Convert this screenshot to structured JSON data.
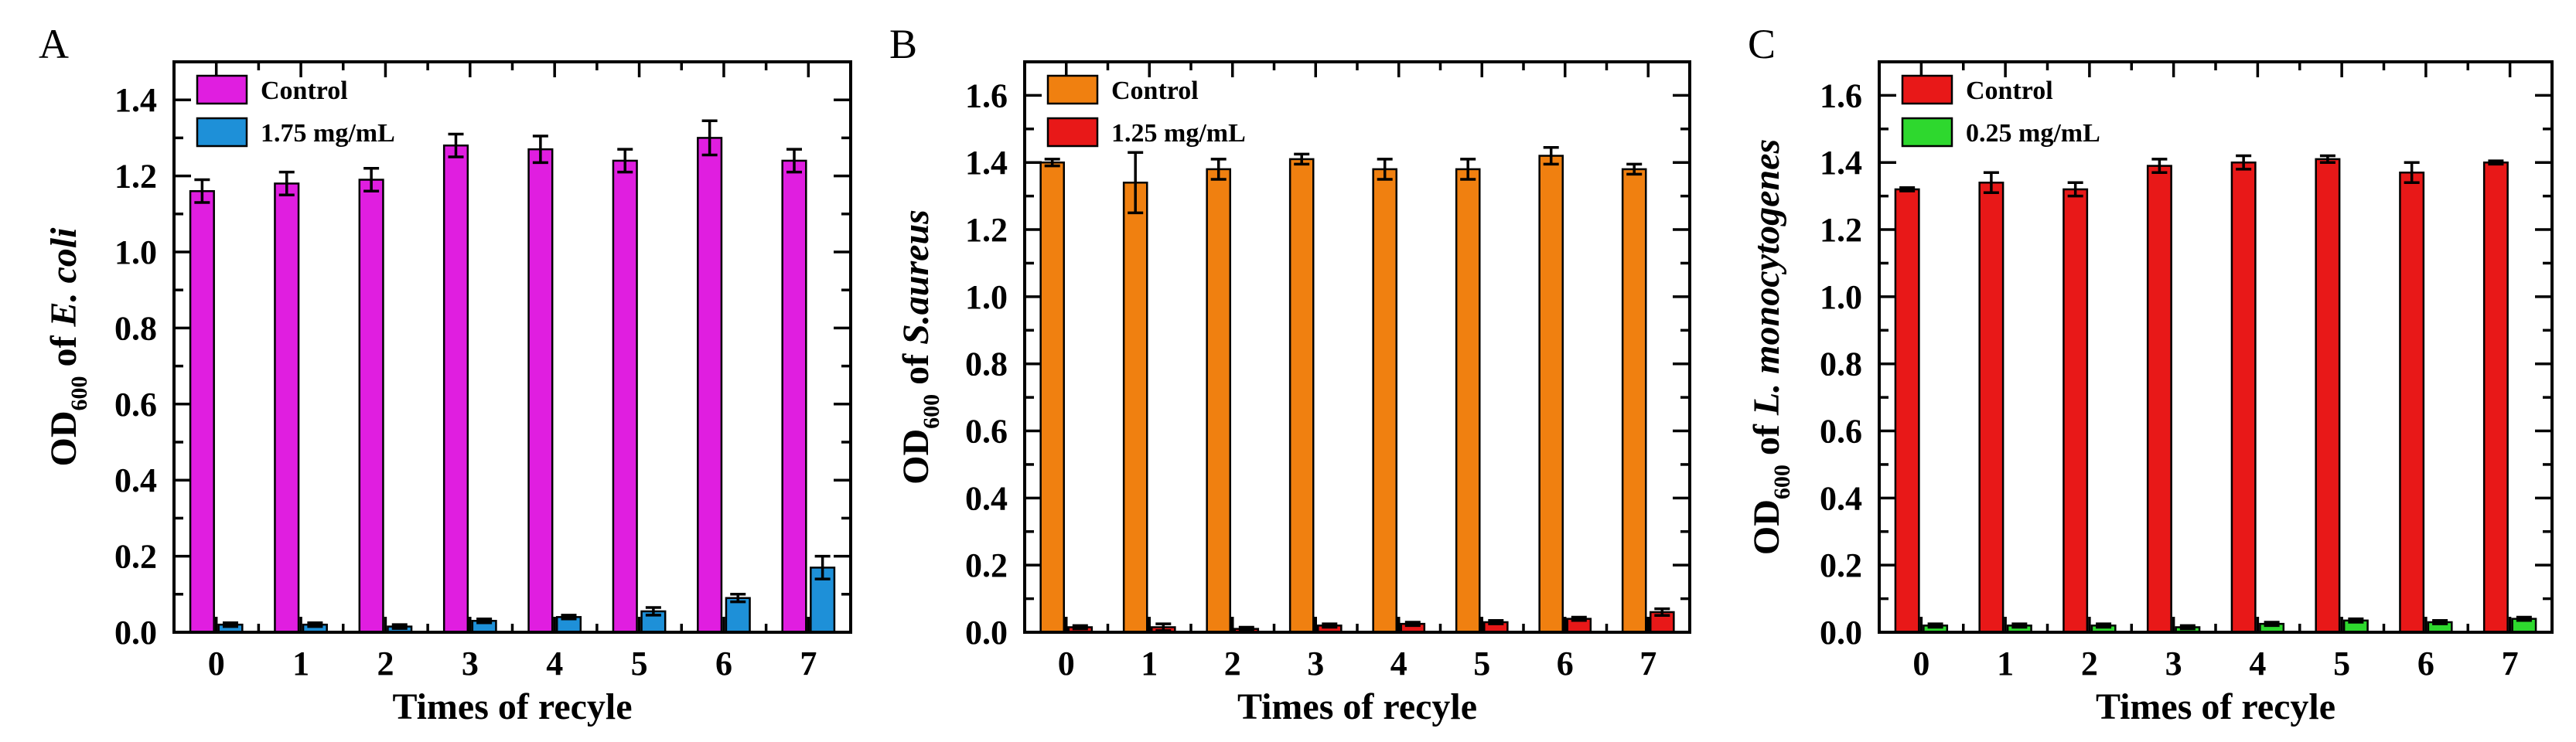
{
  "chart_data": [
    {
      "type": "bar",
      "panel_label": "A",
      "xlabel": "Times of recyle",
      "ylabel": {
        "prefix": "OD",
        "subscript": "600",
        "middle": " of ",
        "organism": "E. coli"
      },
      "ylim": [
        0,
        1.5
      ],
      "yticks": [
        "0.0",
        "0.2",
        "0.4",
        "0.6",
        "0.8",
        "1.0",
        "1.2",
        "1.4"
      ],
      "categories": [
        "0",
        "1",
        "2",
        "3",
        "4",
        "5",
        "6",
        "7"
      ],
      "legend_position": "top-left",
      "series": [
        {
          "name": "Control",
          "color": "#e01ee0",
          "values": [
            1.16,
            1.18,
            1.19,
            1.28,
            1.27,
            1.24,
            1.3,
            1.24
          ],
          "errors": [
            0.03,
            0.03,
            0.03,
            0.03,
            0.035,
            0.03,
            0.045,
            0.03
          ]
        },
        {
          "name": "1.75 mg/mL",
          "color": "#1e90d8",
          "values": [
            0.02,
            0.02,
            0.015,
            0.03,
            0.04,
            0.055,
            0.09,
            0.17
          ],
          "errors": [
            0.005,
            0.005,
            0.005,
            0.005,
            0.005,
            0.01,
            0.01,
            0.03
          ]
        }
      ]
    },
    {
      "type": "bar",
      "panel_label": "B",
      "xlabel": "Times of recyle",
      "ylabel": {
        "prefix": "OD",
        "subscript": "600",
        "middle": " of ",
        "organism": "S.aureus"
      },
      "ylim": [
        0,
        1.7
      ],
      "yticks": [
        "0.0",
        "0.2",
        "0.4",
        "0.6",
        "0.8",
        "1.0",
        "1.2",
        "1.4",
        "1.6"
      ],
      "categories": [
        "0",
        "1",
        "2",
        "3",
        "4",
        "5",
        "6",
        "7"
      ],
      "legend_position": "top-left",
      "series": [
        {
          "name": "Control",
          "color": "#f08010",
          "values": [
            1.4,
            1.34,
            1.38,
            1.41,
            1.38,
            1.38,
            1.42,
            1.38
          ],
          "errors": [
            0.01,
            0.09,
            0.03,
            0.015,
            0.03,
            0.03,
            0.025,
            0.015
          ]
        },
        {
          "name": "1.25 mg/mL",
          "color": "#e81818",
          "values": [
            0.015,
            0.015,
            0.01,
            0.02,
            0.025,
            0.03,
            0.04,
            0.06
          ],
          "errors": [
            0.005,
            0.01,
            0.005,
            0.005,
            0.005,
            0.005,
            0.005,
            0.01
          ]
        }
      ]
    },
    {
      "type": "bar",
      "panel_label": "C",
      "xlabel": "Times of recyle",
      "ylabel": {
        "prefix": "OD",
        "subscript": "600",
        "middle": " of ",
        "organism": "L. monocytogenes"
      },
      "ylim": [
        0,
        1.7
      ],
      "yticks": [
        "0.0",
        "0.2",
        "0.4",
        "0.6",
        "0.8",
        "1.0",
        "1.2",
        "1.4",
        "1.6"
      ],
      "categories": [
        "0",
        "1",
        "2",
        "3",
        "4",
        "5",
        "6",
        "7"
      ],
      "legend_position": "top-left",
      "series": [
        {
          "name": "Control",
          "color": "#e81818",
          "values": [
            1.32,
            1.34,
            1.32,
            1.39,
            1.4,
            1.41,
            1.37,
            1.4
          ],
          "errors": [
            0.005,
            0.03,
            0.02,
            0.02,
            0.02,
            0.01,
            0.03,
            0.005
          ]
        },
        {
          "name": "0.25 mg/mL",
          "color": "#2ed82e",
          "values": [
            0.02,
            0.02,
            0.02,
            0.015,
            0.025,
            0.035,
            0.03,
            0.04
          ],
          "errors": [
            0.005,
            0.005,
            0.005,
            0.005,
            0.005,
            0.005,
            0.005,
            0.005
          ]
        }
      ]
    }
  ]
}
